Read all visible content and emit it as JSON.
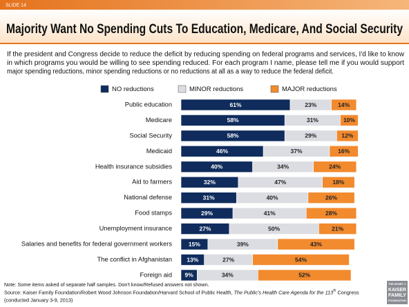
{
  "slide": "SLIDE 14",
  "chart_data": {
    "type": "bar",
    "orientation": "horizontal",
    "stacked": true,
    "title": "Majority Want No Spending Cuts To Education, Medicare, And Social Security",
    "subtitle": [
      "If the president and Congress decide to reduce the deficit by reducing spending on federal programs and services, I'd like to know",
      "in which programs you would be willing to see spending reduced.  For each program I name, please tell me if you would support",
      "major spending reductions, minor spending reductions or no reductions at all as a way to reduce the federal deficit."
    ],
    "categories": [
      "Public education",
      "Medicare",
      "Social Security",
      "Medicaid",
      "Health insurance subsidies",
      "Aid to farmers",
      "National defense",
      "Food stamps",
      "Unemployment insurance",
      "Salaries and benefits for federal government workers",
      "The conflict in Afghanistan",
      "Foreign aid"
    ],
    "series": [
      {
        "name": "NO reductions",
        "color": "#0f2c5c",
        "label_color": "#ffffff",
        "values": [
          61,
          58,
          58,
          46,
          40,
          32,
          31,
          29,
          27,
          15,
          13,
          9
        ],
        "value_labels": [
          "61%",
          "58%",
          "58%",
          "46%",
          "40%",
          "32%",
          "31%",
          "29%",
          "27%",
          "15%",
          "13%",
          "9%"
        ]
      },
      {
        "name": "MINOR reductions",
        "color": "#dcdde2",
        "label_color": "#222222",
        "values": [
          23,
          31,
          29,
          37,
          34,
          47,
          40,
          41,
          50,
          39,
          27,
          34
        ],
        "value_labels": [
          "23%",
          "31%",
          "29%",
          "37%",
          "34%",
          "47%",
          "40%",
          "41%",
          "50%",
          "39%",
          "27%",
          "34%"
        ]
      },
      {
        "name": "MAJOR reductions",
        "color": "#f28a2e",
        "label_color": "#222222",
        "values": [
          14,
          10,
          12,
          16,
          24,
          18,
          26,
          28,
          21,
          43,
          54,
          52
        ],
        "value_labels": [
          "14%",
          "10%",
          "12%",
          "16%",
          "24%",
          "18%",
          "26%",
          "28%",
          "21%",
          "43%",
          "54%",
          "52%"
        ]
      }
    ]
  },
  "notes": {
    "note": "Note: Some items asked of separate half samples. Don't know/Refused answers not shown.",
    "source": "Source: Kaiser Family Foundation/Robert Wood Johnson Foundation/Harvard School of Public Health, ",
    "source_italic": "The Public's Health Care Agenda for the 113",
    "source_sup": "th",
    "source_end": " Congress",
    "dates": "(conducted January 3-9, 2013)"
  },
  "logo": [
    "THE HENRY J.",
    "KAISER",
    "FAMILY",
    "FOUNDATION"
  ]
}
